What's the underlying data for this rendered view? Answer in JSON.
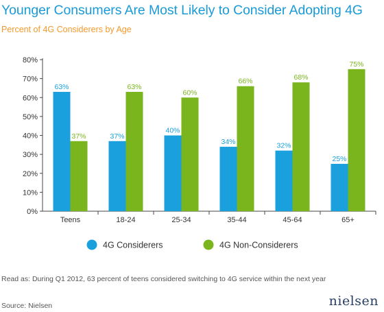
{
  "title": "Younger Consumers Are Most Likely to Consider Adopting 4G",
  "subtitle": "Percent of 4G Considerers by Age",
  "note": "Read as: During Q1 2012, 63 percent of teens considered switching to 4G service within the next year",
  "source": "Source: Nielsen",
  "logo": "nielsen",
  "chart_data": {
    "type": "bar",
    "categories": [
      "Teens",
      "18-24",
      "25-34",
      "35-44",
      "45-64",
      "65+"
    ],
    "series": [
      {
        "name": "4G Considerers",
        "color": "#1aa0dc",
        "values": [
          63,
          37,
          40,
          34,
          32,
          25
        ],
        "labels": [
          "63%",
          "37%",
          "40%",
          "34%",
          "32%",
          "25%"
        ]
      },
      {
        "name": "4G Non-Considerers",
        "color": "#7ab51d",
        "values": [
          37,
          63,
          60,
          66,
          68,
          75
        ],
        "labels": [
          "37%",
          "63%",
          "60%",
          "66%",
          "68%",
          "75%"
        ]
      }
    ],
    "y_ticks": [
      "0%",
      "10%",
      "20%",
      "30%",
      "40%",
      "50%",
      "60%",
      "70%",
      "80%"
    ],
    "ylim": [
      0,
      80
    ],
    "grid": false,
    "legend_position": "bottom"
  }
}
